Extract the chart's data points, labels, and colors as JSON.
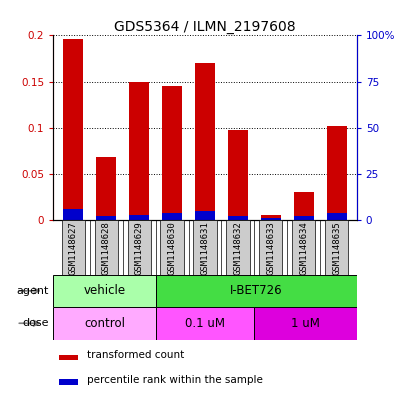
{
  "title": "GDS5364 / ILMN_2197608",
  "samples": [
    "GSM1148627",
    "GSM1148628",
    "GSM1148629",
    "GSM1148630",
    "GSM1148631",
    "GSM1148632",
    "GSM1148633",
    "GSM1148634",
    "GSM1148635"
  ],
  "red_values": [
    0.196,
    0.068,
    0.15,
    0.145,
    0.17,
    0.098,
    0.006,
    0.03,
    0.102
  ],
  "blue_values": [
    0.012,
    0.004,
    0.006,
    0.008,
    0.01,
    0.004,
    0.002,
    0.004,
    0.008
  ],
  "ylim_left": [
    0,
    0.2
  ],
  "ylim_right": [
    0,
    100
  ],
  "yticks_left": [
    0,
    0.05,
    0.1,
    0.15,
    0.2
  ],
  "yticks_right": [
    0,
    25,
    50,
    75,
    100
  ],
  "ytick_labels_right": [
    "0",
    "25",
    "50",
    "75",
    "100%"
  ],
  "red_color": "#cc0000",
  "blue_color": "#0000cc",
  "bar_width": 0.6,
  "vehicle_color": "#aaffaa",
  "ibet_color": "#44dd44",
  "control_color": "#ffaaff",
  "um01_color": "#ff55ff",
  "um1_color": "#dd00dd",
  "xticklabel_bg": "#cccccc",
  "legend_items": [
    {
      "label": "transformed count",
      "color": "#cc0000"
    },
    {
      "label": "percentile rank within the sample",
      "color": "#0000cc"
    }
  ]
}
